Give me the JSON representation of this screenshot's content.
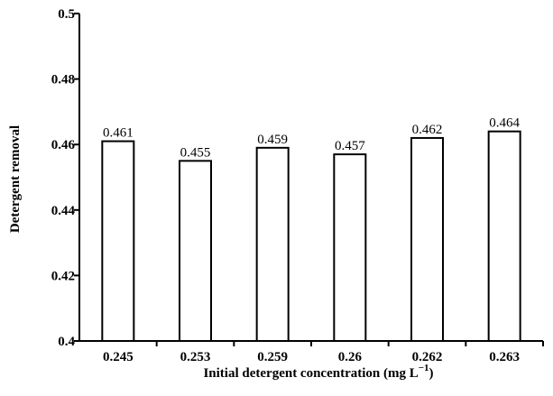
{
  "chart_data": {
    "type": "bar",
    "categories": [
      "0.245",
      "0.253",
      "0.259",
      "0.26",
      "0.262",
      "0.263"
    ],
    "values": [
      0.461,
      0.455,
      0.459,
      0.457,
      0.462,
      0.464
    ],
    "data_labels": [
      "0.461",
      "0.455",
      "0.459",
      "0.457",
      "0.462",
      "0.464"
    ],
    "xlabel": "Initial detergent concentration (mg L",
    "xlabel_unit_exponent": "−1",
    "xlabel_suffix": ")",
    "ylabel": "Detergent removal",
    "ylim": [
      0.4,
      0.5
    ],
    "y_ticks": [
      0.4,
      0.42,
      0.44,
      0.46,
      0.48,
      0.5
    ],
    "y_tick_labels": [
      "0.4",
      "0.42",
      "0.44",
      "0.46",
      "0.48",
      "0.5"
    ],
    "grid": false,
    "bar_fill": "#ffffff",
    "bar_stroke": "#000000"
  }
}
